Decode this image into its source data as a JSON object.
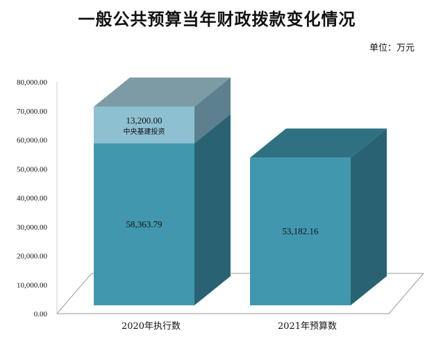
{
  "chart_data": {
    "type": "bar",
    "title": "一般公共预算当年财政拨款变化情况",
    "unit": "单位：万元",
    "categories": [
      "2020年执行数",
      "2021年预算数"
    ],
    "series": [
      {
        "values": [
          58363.79,
          53182.16
        ],
        "labels": [
          "58,363.79",
          "53,182.16"
        ]
      },
      {
        "name": "中央基建投资",
        "values": [
          13200.0,
          0
        ],
        "labels": [
          "13,200.00",
          ""
        ]
      }
    ],
    "y_ticks": [
      "0.00",
      "10,000.00",
      "20,000.00",
      "30,000.00",
      "40,000.00",
      "50,000.00",
      "60,000.00",
      "70,000.00",
      "80,000.00"
    ],
    "ylim": [
      0,
      80000
    ],
    "stacked": true,
    "three_d": true,
    "colors": {
      "base_front": "#4197AE",
      "base_side": "#296373",
      "base_top": "#2F7183",
      "extra_front": "#8DC1D1",
      "extra_side": "#5C808E",
      "extra_top": "#7C9BA4",
      "floor": "#ffffff",
      "grid": "#9a9a9a"
    }
  }
}
